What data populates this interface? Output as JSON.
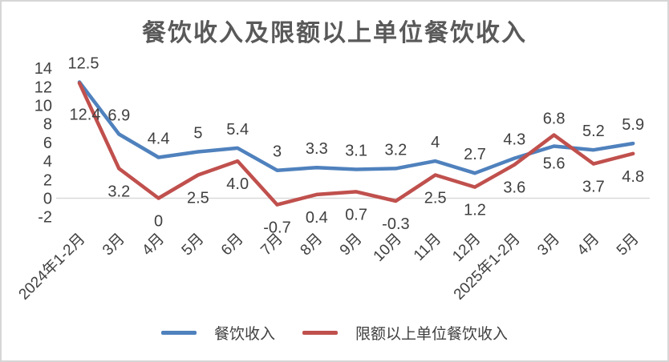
{
  "title": "餐饮收入及限额以上单位餐饮收入",
  "chart_data": {
    "type": "line",
    "title": "餐饮收入及限额以上单位餐饮收入",
    "categories": [
      "2024年1-2月",
      "3月",
      "4月",
      "5月",
      "6月",
      "7月",
      "8月",
      "9月",
      "10月",
      "11月",
      "12月",
      "2025年1-2月",
      "3月",
      "4月",
      "5月"
    ],
    "series": [
      {
        "name": "餐饮收入",
        "color": "#4F81BD",
        "values": [
          12.5,
          6.9,
          4.4,
          5,
          5.4,
          3,
          3.3,
          3.1,
          3.2,
          4,
          2.7,
          4.3,
          5.6,
          5.2,
          5.9
        ],
        "labels": [
          "12.5",
          "6.9",
          "4.4",
          "5",
          "5.4",
          "3",
          "3.3",
          "3.1",
          "3.2",
          "4",
          "2.7",
          "4.3",
          "5.6",
          "5.2",
          "5.9"
        ]
      },
      {
        "name": "限额以上单位餐饮收入",
        "color": "#C0504D",
        "values": [
          12.4,
          3.2,
          0,
          2.5,
          4.0,
          -0.7,
          0.4,
          0.7,
          -0.3,
          2.5,
          1.2,
          3.6,
          6.8,
          3.7,
          4.8
        ],
        "labels": [
          "12.4",
          "3.2",
          "0",
          "2.5",
          "4.0",
          "-0.7",
          "0.4",
          "0.7",
          "-0.3",
          "2.5",
          "1.2",
          "3.6",
          "6.8",
          "3.7",
          "4.8"
        ]
      }
    ],
    "y_axis": {
      "ticks": [
        14,
        12,
        10,
        8,
        6,
        4,
        2,
        0,
        -2
      ],
      "min": -2,
      "max": 14
    },
    "xlabel": "",
    "ylabel": "",
    "grid": "zero-line-only",
    "legend_position": "bottom",
    "colors": {
      "axis_text": "#404040",
      "data_label_text": "#404040",
      "title_text": "#595959",
      "gridline": "#d9d9d9",
      "frame_border": "#d6d6d6"
    }
  },
  "legend": {
    "items": [
      {
        "label": "餐饮收入",
        "color": "#4F81BD"
      },
      {
        "label": "限额以上单位餐饮收入",
        "color": "#C0504D"
      }
    ]
  }
}
